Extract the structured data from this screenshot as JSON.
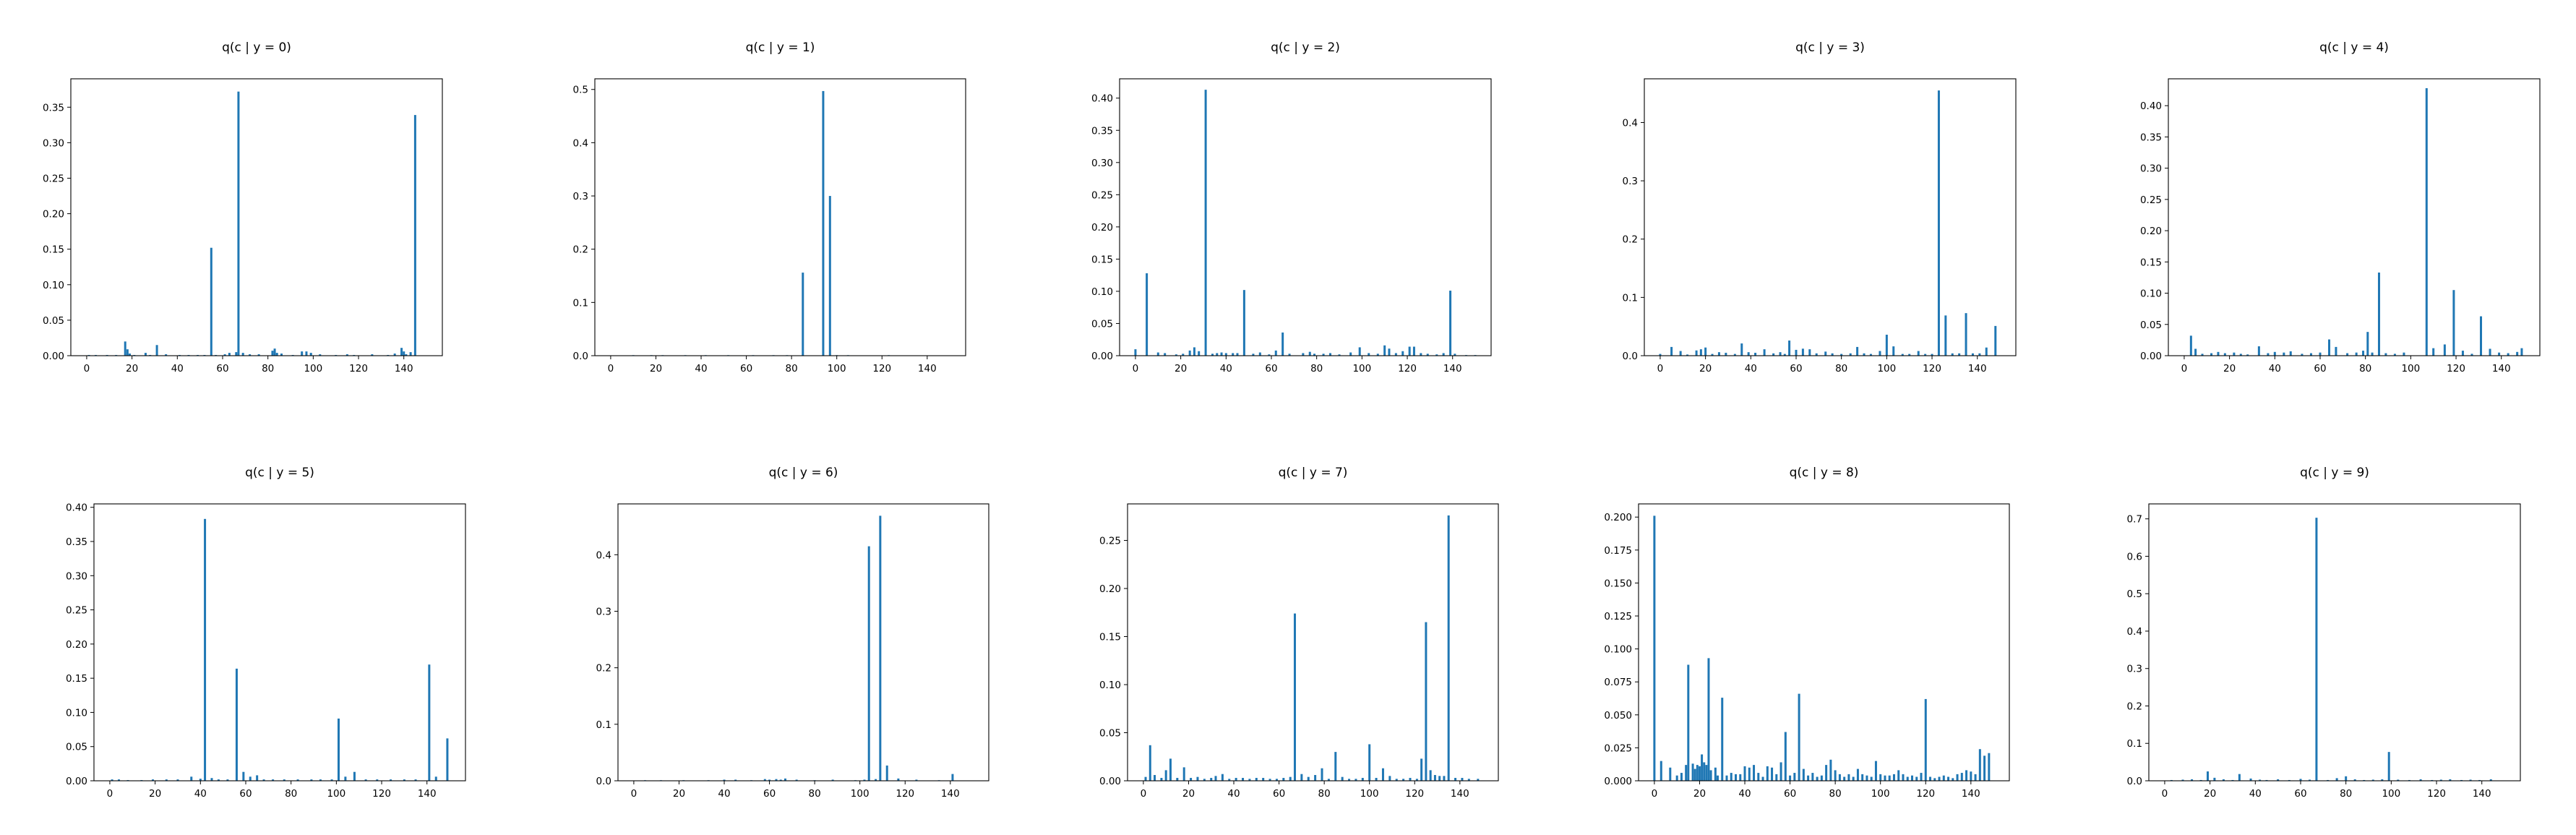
{
  "bar_color": "#1f77b4",
  "chart_data": [
    {
      "type": "bar",
      "title": "q(c | y = 0)",
      "xlabel": "",
      "ylabel": "",
      "xlim": [
        -7,
        157
      ],
      "ylim": [
        0,
        0.39
      ],
      "xticks": [
        0,
        20,
        40,
        60,
        80,
        100,
        120,
        140
      ],
      "yticks": [
        0.0,
        0.05,
        0.1,
        0.15,
        0.2,
        0.25,
        0.3,
        0.35
      ],
      "ytick_decimals": 2,
      "x": [
        1,
        4,
        9,
        13,
        17,
        18,
        19,
        21,
        26,
        28,
        31,
        35,
        41,
        45,
        49,
        52,
        55,
        57,
        61,
        63,
        66,
        67,
        69,
        72,
        76,
        82,
        83,
        84,
        86,
        91,
        95,
        97,
        99,
        103,
        110,
        115,
        118,
        126,
        133,
        136,
        139,
        140,
        141,
        143,
        145
      ],
      "values": [
        0.001,
        0.001,
        0.001,
        0.001,
        0.02,
        0.009,
        0.003,
        0.001,
        0.004,
        0.001,
        0.015,
        0.002,
        0.001,
        0.001,
        0.001,
        0.001,
        0.152,
        0.001,
        0.002,
        0.004,
        0.005,
        0.372,
        0.004,
        0.002,
        0.002,
        0.007,
        0.01,
        0.004,
        0.003,
        0.001,
        0.006,
        0.006,
        0.004,
        0.002,
        0.001,
        0.002,
        0.001,
        0.002,
        0.001,
        0.003,
        0.011,
        0.006,
        0.002,
        0.005,
        0.339
      ]
    },
    {
      "type": "bar",
      "title": "q(c | y = 1)",
      "xlabel": "",
      "ylabel": "",
      "xlim": [
        -7,
        157
      ],
      "ylim": [
        0,
        0.52
      ],
      "xticks": [
        0,
        20,
        40,
        60,
        80,
        100,
        120,
        140
      ],
      "yticks": [
        0.0,
        0.1,
        0.2,
        0.3,
        0.4,
        0.5
      ],
      "ytick_decimals": 1,
      "x": [
        10,
        18,
        23,
        33,
        42,
        52,
        63,
        72,
        78,
        85,
        94,
        97,
        100,
        105,
        123
      ],
      "values": [
        0.001,
        0.001,
        0.001,
        0.001,
        0.001,
        0.001,
        0.001,
        0.001,
        0.001,
        0.156,
        0.497,
        0.3,
        0.001,
        0.001,
        0.001
      ]
    },
    {
      "type": "bar",
      "title": "q(c | y = 2)",
      "xlabel": "",
      "ylabel": "",
      "xlim": [
        -7,
        157
      ],
      "ylim": [
        0,
        0.43
      ],
      "xticks": [
        0,
        20,
        40,
        60,
        80,
        100,
        120,
        140
      ],
      "yticks": [
        0.0,
        0.05,
        0.1,
        0.15,
        0.2,
        0.25,
        0.3,
        0.35,
        0.4
      ],
      "ytick_decimals": 2,
      "x": [
        0,
        5,
        10,
        13,
        18,
        21,
        24,
        26,
        28,
        31,
        34,
        36,
        38,
        40,
        43,
        45,
        48,
        52,
        55,
        59,
        62,
        65,
        68,
        74,
        77,
        79,
        83,
        86,
        90,
        95,
        99,
        103,
        107,
        110,
        112,
        115,
        118,
        121,
        123,
        126,
        129,
        133,
        136,
        139,
        141,
        146,
        150
      ],
      "values": [
        0.01,
        0.128,
        0.005,
        0.004,
        0.002,
        0.003,
        0.008,
        0.013,
        0.007,
        0.413,
        0.003,
        0.004,
        0.005,
        0.004,
        0.004,
        0.004,
        0.102,
        0.003,
        0.005,
        0.002,
        0.008,
        0.036,
        0.003,
        0.004,
        0.006,
        0.003,
        0.003,
        0.004,
        0.002,
        0.005,
        0.013,
        0.004,
        0.003,
        0.016,
        0.011,
        0.004,
        0.007,
        0.014,
        0.014,
        0.004,
        0.003,
        0.002,
        0.004,
        0.101,
        0.003,
        0.001,
        0.001
      ]
    },
    {
      "type": "bar",
      "title": "q(c | y = 3)",
      "xlabel": "",
      "ylabel": "",
      "xlim": [
        -7,
        157
      ],
      "ylim": [
        0,
        0.475
      ],
      "xticks": [
        0,
        20,
        40,
        60,
        80,
        100,
        120,
        140
      ],
      "yticks": [
        0.0,
        0.1,
        0.2,
        0.3,
        0.4
      ],
      "ytick_decimals": 1,
      "x": [
        0,
        5,
        9,
        12,
        16,
        18,
        20,
        23,
        26,
        29,
        33,
        36,
        39,
        42,
        46,
        50,
        53,
        55,
        57,
        60,
        63,
        66,
        69,
        73,
        76,
        80,
        84,
        87,
        90,
        93,
        97,
        100,
        103,
        107,
        110,
        114,
        117,
        120,
        123,
        126,
        129,
        132,
        135,
        138,
        141,
        144,
        148
      ],
      "values": [
        0.003,
        0.015,
        0.008,
        0.002,
        0.009,
        0.011,
        0.014,
        0.003,
        0.006,
        0.005,
        0.003,
        0.021,
        0.006,
        0.005,
        0.011,
        0.004,
        0.006,
        0.003,
        0.026,
        0.01,
        0.012,
        0.011,
        0.004,
        0.007,
        0.004,
        0.003,
        0.004,
        0.015,
        0.004,
        0.003,
        0.008,
        0.036,
        0.016,
        0.003,
        0.003,
        0.008,
        0.003,
        0.003,
        0.455,
        0.069,
        0.004,
        0.004,
        0.073,
        0.004,
        0.004,
        0.014,
        0.051
      ]
    },
    {
      "type": "bar",
      "title": "q(c | y = 4)",
      "xlabel": "",
      "ylabel": "",
      "xlim": [
        -7,
        157
      ],
      "ylim": [
        0,
        0.443
      ],
      "xticks": [
        0,
        20,
        40,
        60,
        80,
        100,
        120,
        140
      ],
      "yticks": [
        0.0,
        0.05,
        0.1,
        0.15,
        0.2,
        0.25,
        0.3,
        0.35,
        0.4
      ],
      "ytick_decimals": 2,
      "x": [
        3,
        5,
        8,
        12,
        15,
        18,
        22,
        25,
        28,
        33,
        37,
        40,
        44,
        47,
        52,
        56,
        60,
        64,
        67,
        72,
        76,
        79,
        81,
        83,
        86,
        89,
        93,
        97,
        107,
        110,
        115,
        119,
        123,
        127,
        131,
        135,
        139,
        143,
        147,
        149
      ],
      "values": [
        0.032,
        0.011,
        0.003,
        0.004,
        0.006,
        0.004,
        0.005,
        0.003,
        0.002,
        0.015,
        0.004,
        0.006,
        0.005,
        0.007,
        0.003,
        0.004,
        0.005,
        0.026,
        0.014,
        0.004,
        0.005,
        0.008,
        0.038,
        0.005,
        0.133,
        0.004,
        0.003,
        0.005,
        0.428,
        0.012,
        0.018,
        0.105,
        0.008,
        0.003,
        0.063,
        0.011,
        0.005,
        0.004,
        0.006,
        0.012
      ]
    },
    {
      "type": "bar",
      "title": "q(c | y = 5)",
      "xlabel": "",
      "ylabel": "",
      "xlim": [
        -7,
        157
      ],
      "ylim": [
        0,
        0.405
      ],
      "xticks": [
        0,
        20,
        40,
        60,
        80,
        100,
        120,
        140
      ],
      "yticks": [
        0.0,
        0.05,
        0.1,
        0.15,
        0.2,
        0.25,
        0.3,
        0.35,
        0.4
      ],
      "ytick_decimals": 2,
      "x": [
        1,
        4,
        8,
        14,
        19,
        25,
        30,
        36,
        40,
        42,
        45,
        48,
        52,
        56,
        59,
        62,
        65,
        68,
        72,
        77,
        83,
        89,
        93,
        98,
        101,
        104,
        108,
        113,
        118,
        124,
        130,
        135,
        141,
        144,
        149
      ],
      "values": [
        0.002,
        0.002,
        0.001,
        0.001,
        0.002,
        0.002,
        0.002,
        0.006,
        0.003,
        0.383,
        0.004,
        0.002,
        0.002,
        0.164,
        0.013,
        0.006,
        0.008,
        0.002,
        0.002,
        0.002,
        0.002,
        0.002,
        0.002,
        0.002,
        0.091,
        0.006,
        0.013,
        0.002,
        0.002,
        0.002,
        0.002,
        0.002,
        0.17,
        0.006,
        0.062
      ]
    },
    {
      "type": "bar",
      "title": "q(c | y = 6)",
      "xlabel": "",
      "ylabel": "",
      "xlim": [
        -7,
        157
      ],
      "ylim": [
        0,
        0.49
      ],
      "xticks": [
        0,
        20,
        40,
        60,
        80,
        100,
        120,
        140
      ],
      "yticks": [
        0.0,
        0.1,
        0.2,
        0.3,
        0.4
      ],
      "ytick_decimals": 1,
      "x": [
        5,
        12,
        22,
        33,
        40,
        45,
        52,
        58,
        60,
        63,
        65,
        67,
        72,
        80,
        88,
        98,
        102,
        104,
        107,
        109,
        112,
        117,
        125,
        135,
        141
      ],
      "values": [
        0.001,
        0.001,
        0.001,
        0.001,
        0.002,
        0.002,
        0.001,
        0.003,
        0.002,
        0.003,
        0.002,
        0.004,
        0.002,
        0.001,
        0.002,
        0.001,
        0.002,
        0.415,
        0.003,
        0.469,
        0.027,
        0.004,
        0.002,
        0.001,
        0.012
      ]
    },
    {
      "type": "bar",
      "title": "q(c | y = 7)",
      "xlabel": "",
      "ylabel": "",
      "xlim": [
        -7,
        157
      ],
      "ylim": [
        0,
        0.288
      ],
      "xticks": [
        0,
        20,
        40,
        60,
        80,
        100,
        120,
        140
      ],
      "yticks": [
        0.0,
        0.05,
        0.1,
        0.15,
        0.2,
        0.25
      ],
      "ytick_decimals": 2,
      "x": [
        1,
        3,
        5,
        8,
        10,
        12,
        15,
        18,
        21,
        24,
        27,
        30,
        32,
        35,
        38,
        41,
        44,
        47,
        50,
        53,
        56,
        59,
        62,
        65,
        67,
        70,
        73,
        76,
        79,
        82,
        85,
        88,
        91,
        94,
        97,
        100,
        103,
        106,
        109,
        112,
        115,
        118,
        121,
        123,
        125,
        127,
        129,
        131,
        133,
        135,
        138,
        141,
        144,
        148
      ],
      "values": [
        0.004,
        0.037,
        0.006,
        0.003,
        0.011,
        0.023,
        0.003,
        0.014,
        0.003,
        0.004,
        0.002,
        0.003,
        0.005,
        0.007,
        0.002,
        0.003,
        0.003,
        0.002,
        0.003,
        0.003,
        0.002,
        0.002,
        0.003,
        0.004,
        0.174,
        0.007,
        0.004,
        0.006,
        0.013,
        0.002,
        0.03,
        0.004,
        0.002,
        0.002,
        0.003,
        0.038,
        0.003,
        0.013,
        0.005,
        0.002,
        0.002,
        0.003,
        0.002,
        0.023,
        0.165,
        0.011,
        0.006,
        0.005,
        0.005,
        0.276,
        0.003,
        0.003,
        0.002,
        0.002
      ]
    },
    {
      "type": "bar",
      "title": "q(c | y = 8)",
      "xlabel": "",
      "ylabel": "",
      "xlim": [
        -7,
        157
      ],
      "ylim": [
        0,
        0.21
      ],
      "xticks": [
        0,
        20,
        40,
        60,
        80,
        100,
        120,
        140
      ],
      "yticks": [
        0.0,
        0.025,
        0.05,
        0.075,
        0.1,
        0.125,
        0.15,
        0.175,
        0.2
      ],
      "ytick_decimals": 3,
      "x": [
        0,
        3,
        7,
        10,
        12,
        14,
        15,
        17,
        18,
        19,
        20,
        21,
        22,
        23,
        24,
        25,
        27,
        28,
        30,
        32,
        34,
        36,
        38,
        40,
        42,
        44,
        46,
        48,
        50,
        52,
        54,
        56,
        58,
        60,
        62,
        64,
        66,
        68,
        70,
        72,
        74,
        76,
        78,
        80,
        82,
        84,
        86,
        88,
        90,
        92,
        94,
        96,
        98,
        100,
        102,
        104,
        106,
        108,
        110,
        112,
        114,
        116,
        118,
        120,
        122,
        124,
        126,
        128,
        130,
        132,
        134,
        136,
        138,
        140,
        142,
        144,
        146,
        148
      ],
      "values": [
        0.201,
        0.015,
        0.01,
        0.004,
        0.006,
        0.012,
        0.088,
        0.013,
        0.009,
        0.012,
        0.011,
        0.02,
        0.014,
        0.012,
        0.093,
        0.008,
        0.01,
        0.004,
        0.063,
        0.004,
        0.006,
        0.005,
        0.005,
        0.011,
        0.01,
        0.012,
        0.006,
        0.003,
        0.011,
        0.01,
        0.005,
        0.014,
        0.037,
        0.004,
        0.006,
        0.066,
        0.009,
        0.004,
        0.006,
        0.003,
        0.004,
        0.012,
        0.016,
        0.008,
        0.005,
        0.003,
        0.005,
        0.003,
        0.009,
        0.005,
        0.004,
        0.003,
        0.015,
        0.005,
        0.004,
        0.004,
        0.005,
        0.008,
        0.005,
        0.003,
        0.004,
        0.003,
        0.006,
        0.062,
        0.003,
        0.002,
        0.003,
        0.004,
        0.003,
        0.002,
        0.005,
        0.006,
        0.008,
        0.007,
        0.005,
        0.024,
        0.019,
        0.021
      ]
    },
    {
      "type": "bar",
      "title": "q(c | y = 9)",
      "xlabel": "",
      "ylabel": "",
      "xlim": [
        -7,
        157
      ],
      "ylim": [
        0,
        0.74
      ],
      "xticks": [
        0,
        20,
        40,
        60,
        80,
        100,
        120,
        140
      ],
      "yticks": [
        0.0,
        0.1,
        0.2,
        0.3,
        0.4,
        0.5,
        0.6,
        0.7
      ],
      "ytick_decimals": 1,
      "x": [
        3,
        8,
        12,
        16,
        19,
        22,
        26,
        30,
        33,
        38,
        42,
        45,
        50,
        55,
        60,
        64,
        67,
        72,
        76,
        80,
        84,
        88,
        92,
        96,
        99,
        103,
        108,
        113,
        118,
        122,
        126,
        131,
        135,
        139,
        144
      ],
      "values": [
        0.002,
        0.003,
        0.004,
        0.002,
        0.025,
        0.008,
        0.004,
        0.002,
        0.018,
        0.006,
        0.003,
        0.002,
        0.004,
        0.002,
        0.005,
        0.003,
        0.703,
        0.002,
        0.007,
        0.012,
        0.004,
        0.002,
        0.003,
        0.004,
        0.077,
        0.003,
        0.002,
        0.004,
        0.002,
        0.003,
        0.004,
        0.002,
        0.003,
        0.002,
        0.004
      ]
    }
  ]
}
